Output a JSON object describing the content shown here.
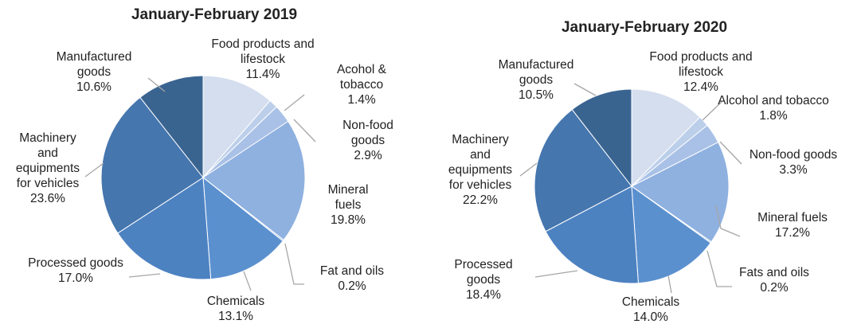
{
  "chart_data": [
    {
      "type": "pie",
      "title": "January-February 2019",
      "start_angle_deg": 0,
      "direction": "clockwise",
      "slices": [
        {
          "name": [
            "Food products and",
            "lifestock"
          ],
          "value": 11.4,
          "label": "11.4%",
          "color": "#d4deef"
        },
        {
          "name": [
            "Acohol &",
            "tobacco"
          ],
          "value": 1.4,
          "label": "1.4%",
          "color": "#bccfea"
        },
        {
          "name": [
            "Non-food",
            "goods"
          ],
          "value": 2.9,
          "label": "2.9%",
          "color": "#a9c1e6"
        },
        {
          "name": [
            "Mineral",
            "fuels"
          ],
          "value": 19.8,
          "label": "19.8%",
          "color": "#8fb1e0"
        },
        {
          "name": [
            "Fat and oils"
          ],
          "value": 0.2,
          "label": "0.2%",
          "color": "#7aa3db"
        },
        {
          "name": [
            "Chemicals"
          ],
          "value": 13.1,
          "label": "13.1%",
          "color": "#5b90cf"
        },
        {
          "name": [
            "Processed goods"
          ],
          "value": 17.0,
          "label": "17.0%",
          "color": "#4d82c1"
        },
        {
          "name": [
            "Machinery",
            "and",
            "equipments",
            "for vehicles"
          ],
          "value": 23.6,
          "label": "23.6%",
          "color": "#4576ae"
        },
        {
          "name": [
            "Manufactured",
            "goods"
          ],
          "value": 10.6,
          "label": "10.6%",
          "color": "#3a6490"
        }
      ]
    },
    {
      "type": "pie",
      "title": "January-February 2020",
      "start_angle_deg": 0,
      "direction": "clockwise",
      "slices": [
        {
          "name": [
            "Food products and",
            "lifestock"
          ],
          "value": 12.4,
          "label": "12.4%",
          "color": "#d4deef"
        },
        {
          "name": [
            "Alcohol and tobacco"
          ],
          "value": 1.8,
          "label": "1.8%",
          "color": "#bccfea"
        },
        {
          "name": [
            "Non-food goods"
          ],
          "value": 3.3,
          "label": "3.3%",
          "color": "#a9c1e6"
        },
        {
          "name": [
            "Mineral fuels"
          ],
          "value": 17.2,
          "label": "17.2%",
          "color": "#8fb1e0"
        },
        {
          "name": [
            "Fats and oils"
          ],
          "value": 0.2,
          "label": "0.2%",
          "color": "#7aa3db"
        },
        {
          "name": [
            "Chemicals"
          ],
          "value": 14.0,
          "label": "14.0%",
          "color": "#5b90cf"
        },
        {
          "name": [
            "Processed",
            "goods"
          ],
          "value": 18.4,
          "label": "18.4%",
          "color": "#4d82c1"
        },
        {
          "name": [
            "Machinery",
            "and",
            "equipments",
            "for vehicles"
          ],
          "value": 22.2,
          "label": "22.2%",
          "color": "#4576ae"
        },
        {
          "name": [
            "Manufactured",
            "goods"
          ],
          "value": 10.5,
          "label": "10.5%",
          "color": "#3a6490"
        }
      ]
    }
  ]
}
